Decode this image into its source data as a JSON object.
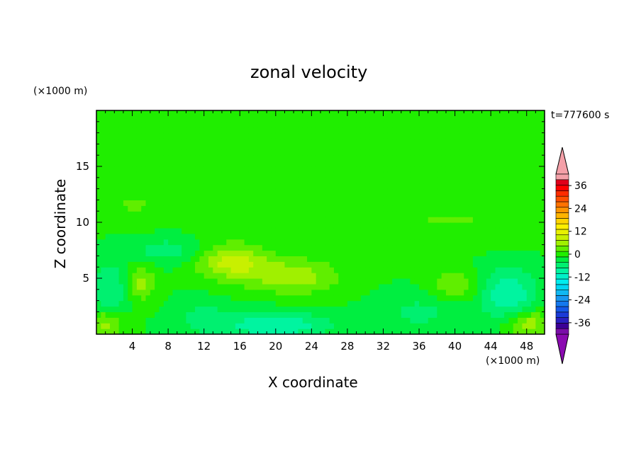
{
  "chart_data": {
    "type": "heatmap",
    "title": "zonal velocity",
    "xlabel": "X coordinate",
    "ylabel": "Z coordinate",
    "x_unit": "(×1000 m)",
    "y_unit": "(×1000 m)",
    "time_label": "t=777600 s",
    "xlim": [
      0,
      50
    ],
    "ylim": [
      0,
      20
    ],
    "x_ticks": [
      4,
      8,
      12,
      16,
      20,
      24,
      28,
      32,
      36,
      40,
      44,
      48
    ],
    "y_ticks": [
      5,
      10,
      15
    ],
    "colorbar": {
      "levels": [
        -42,
        -39,
        -36,
        -33,
        -30,
        -27,
        -24,
        -21,
        -18,
        -15,
        -12,
        -9,
        -6,
        -3,
        0,
        3,
        6,
        9,
        12,
        15,
        18,
        21,
        24,
        27,
        30,
        33,
        36,
        39,
        42
      ],
      "tick_labels": [
        "36",
        "24",
        "12",
        "0",
        "-12",
        "-24",
        "-36"
      ],
      "colors": [
        "#7a0ea8",
        "#3c0096",
        "#2a1fc0",
        "#1a3ad8",
        "#1458e8",
        "#1478ee",
        "#1898f0",
        "#10b8f2",
        "#00d6f2",
        "#00ecee",
        "#00f0c8",
        "#00f4a0",
        "#00f070",
        "#00ee40",
        "#20ee00",
        "#60ee00",
        "#a0f000",
        "#c8f000",
        "#e8f000",
        "#ffee00",
        "#ffd400",
        "#ffb400",
        "#ff9400",
        "#ff7200",
        "#ff5000",
        "#ff2c00",
        "#ff0000",
        "#e0001a",
        "#f4a0a8"
      ],
      "under_color": "#8a0ab0",
      "over_color": "#f4a0a8"
    },
    "features": [
      {
        "x": 27,
        "z": 13.5,
        "value": 1.5,
        "sx": 30,
        "sz": 4
      },
      {
        "x": 4,
        "z": 11.5,
        "value": 2.5,
        "sx": 6,
        "sz": 1.5
      },
      {
        "x": 40,
        "z": 10,
        "value": 2.5,
        "sx": 12,
        "sz": 2
      },
      {
        "x": 15,
        "z": 6.5,
        "value": 10,
        "sx": 4,
        "sz": 1.6
      },
      {
        "x": 22,
        "z": 5.2,
        "value": 8,
        "sx": 5,
        "sz": 1.6
      },
      {
        "x": 5,
        "z": 4.6,
        "value": 7,
        "sx": 1.6,
        "sz": 1.6
      },
      {
        "x": 40,
        "z": 4.4,
        "value": 6,
        "sx": 2.5,
        "sz": 1.3
      },
      {
        "x": 1.5,
        "z": 4,
        "value": -6,
        "sx": 2,
        "sz": 2.5
      },
      {
        "x": 1,
        "z": 1,
        "value": 8,
        "sx": 2,
        "sz": 1.2
      },
      {
        "x": 20,
        "z": 0.8,
        "value": -9,
        "sx": 6,
        "sz": 1.2
      },
      {
        "x": 12,
        "z": 1.5,
        "value": -4,
        "sx": 3,
        "sz": 1.5
      },
      {
        "x": 36,
        "z": 2,
        "value": -4,
        "sx": 4,
        "sz": 1.5
      },
      {
        "x": 46,
        "z": 3.5,
        "value": -9,
        "sx": 3,
        "sz": 2.5
      },
      {
        "x": 48,
        "z": 1,
        "value": 9,
        "sx": 2.5,
        "sz": 1.2
      },
      {
        "x": 8,
        "z": 7.5,
        "value": -5,
        "sx": 4,
        "sz": 1.2
      }
    ]
  }
}
